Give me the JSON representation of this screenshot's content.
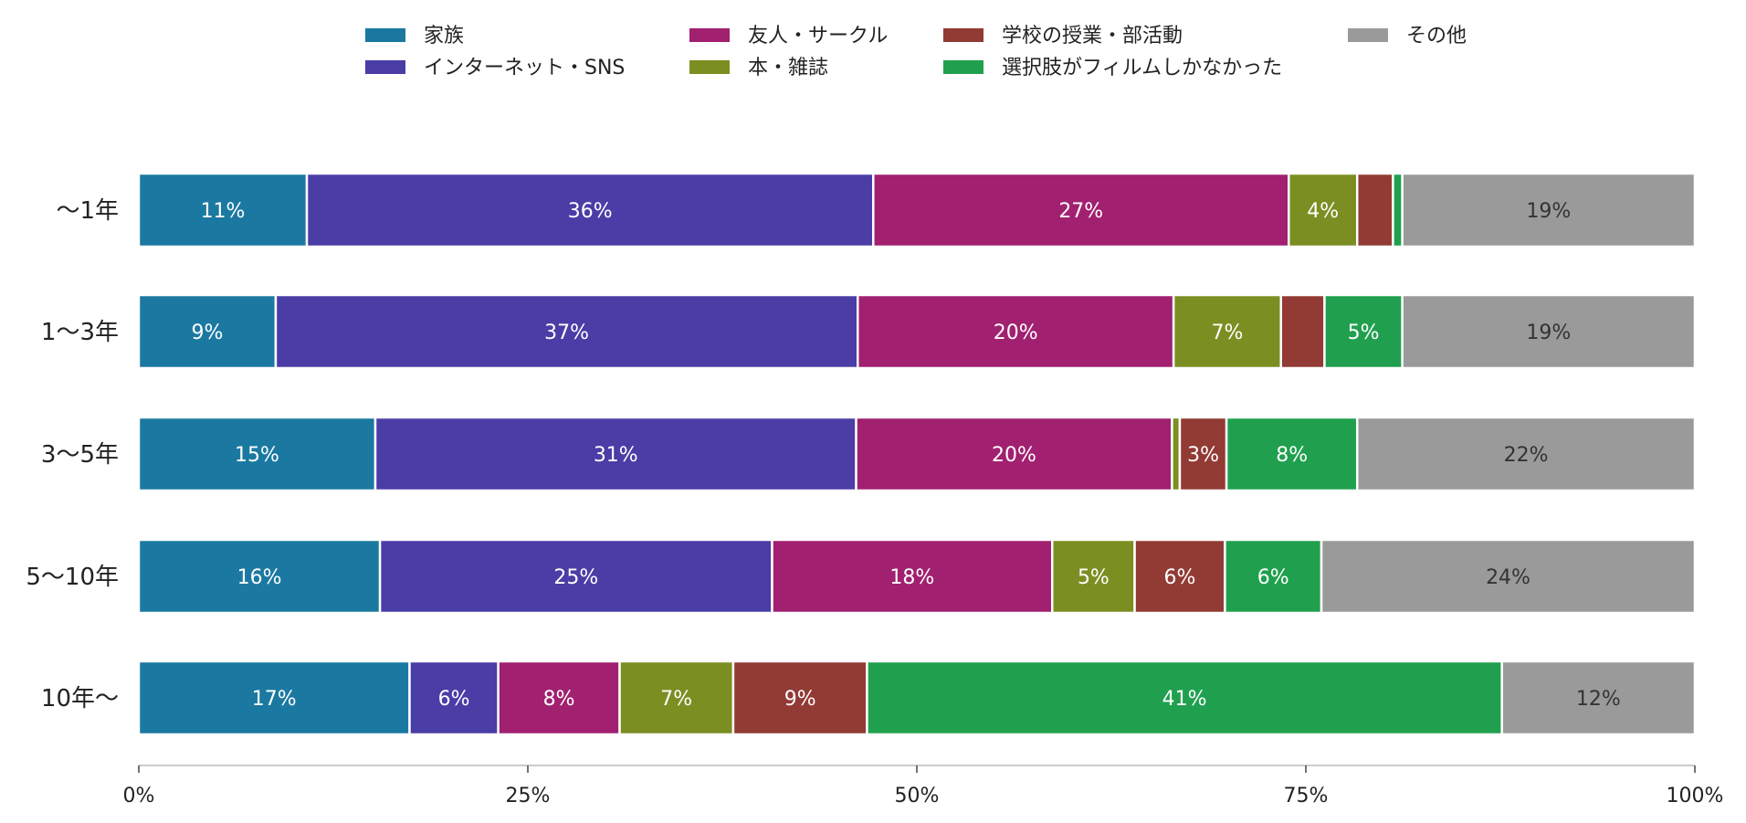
{
  "chart_data": {
    "type": "bar",
    "orientation": "horizontal",
    "stacked": true,
    "categories": [
      "〜1年",
      "1〜3年",
      "3〜5年",
      "5〜10年",
      "10年〜"
    ],
    "series": [
      {
        "name": "家族",
        "color": "#1b79a1",
        "values": [
          10.8,
          8.8,
          15.2,
          15.5,
          17.4
        ],
        "labels": [
          "11%",
          "9%",
          "15%",
          "16%",
          "17%"
        ]
      },
      {
        "name": "インターネット・SNS",
        "color": "#4a3da6",
        "values": [
          36.4,
          37.4,
          30.9,
          25.2,
          5.7
        ],
        "labels": [
          "36%",
          "37%",
          "31%",
          "25%",
          "6%"
        ]
      },
      {
        "name": "友人・サークル",
        "color": "#a12070",
        "values": [
          26.7,
          20.3,
          20.3,
          18.0,
          7.8
        ],
        "labels": [
          "27%",
          "20%",
          "20%",
          "18%",
          "8%"
        ]
      },
      {
        "name": "本・雑誌",
        "color": "#7b8e22",
        "values": [
          4.4,
          6.9,
          0.5,
          5.3,
          7.3
        ],
        "labels": [
          "4%",
          "7%",
          "",
          "5%",
          "7%"
        ]
      },
      {
        "name": "学校の授業・部活動",
        "color": "#923a34",
        "values": [
          2.3,
          2.8,
          3.0,
          5.8,
          8.6
        ],
        "labels": [
          "",
          "",
          "3%",
          "6%",
          "9%"
        ]
      },
      {
        "name": "選択肢がフィルムしかなかった",
        "color": "#20a04e",
        "values": [
          0.6,
          5.0,
          8.4,
          6.2,
          40.8
        ],
        "labels": [
          "",
          "5%",
          "8%",
          "6%",
          "41%"
        ]
      },
      {
        "name": "その他",
        "color": "#9a9a9a",
        "values": [
          18.8,
          18.8,
          21.7,
          24.0,
          12.4
        ],
        "labels": [
          "19%",
          "19%",
          "22%",
          "24%",
          "12%"
        ]
      }
    ],
    "xticks": [
      "0%",
      "25%",
      "50%",
      "75%",
      "100%"
    ],
    "xlim": [
      0,
      100
    ],
    "legend_position": "top",
    "grid": false
  }
}
